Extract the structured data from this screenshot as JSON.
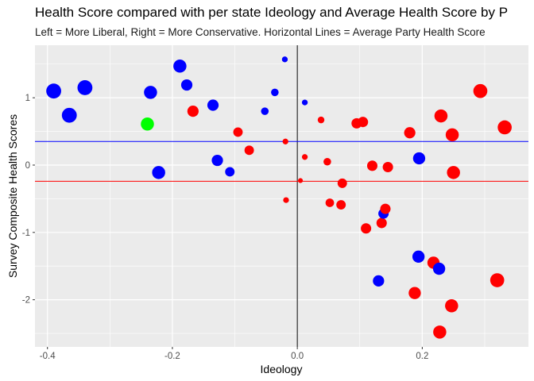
{
  "chart_data": {
    "type": "scatter",
    "title": "Health Score compared with per state Ideology and Average Health Score by P",
    "subtitle": "Left = More Liberal, Right = More Conservative. Horizontal Lines = Average Party Health Score",
    "xlabel": "Ideology",
    "ylabel": "Survey Composite Health Scores",
    "xlim": [
      -0.42,
      0.37
    ],
    "ylim": [
      -2.7,
      1.78
    ],
    "x_ticks": [
      -0.4,
      -0.2,
      0.0,
      0.2
    ],
    "x_tick_labels": [
      "-0.4",
      "-0.2",
      "0.0",
      "0.2"
    ],
    "y_ticks": [
      -2,
      -1,
      0,
      1
    ],
    "y_tick_labels": [
      "-2",
      "-1",
      "0",
      "1"
    ],
    "grid": true,
    "colors": {
      "blue": "#0000ff",
      "red": "#ff0000",
      "green": "#00ff00",
      "panel": "#ebebeb",
      "grid": "#ffffff",
      "vline": "#000000"
    },
    "hlines": [
      {
        "y": 0.35,
        "color": "#0000ff"
      },
      {
        "y": -0.24,
        "color": "#ff0000"
      }
    ],
    "vline": {
      "x": 0.0
    },
    "points": [
      {
        "x": -0.39,
        "y": 1.1,
        "color": "blue",
        "size": 6
      },
      {
        "x": -0.365,
        "y": 0.74,
        "color": "blue",
        "size": 6
      },
      {
        "x": -0.34,
        "y": 1.15,
        "color": "blue",
        "size": 6
      },
      {
        "x": -0.235,
        "y": 1.08,
        "color": "blue",
        "size": 5
      },
      {
        "x": -0.24,
        "y": 0.61,
        "color": "green",
        "size": 5
      },
      {
        "x": -0.222,
        "y": -0.11,
        "color": "blue",
        "size": 5
      },
      {
        "x": -0.188,
        "y": 1.47,
        "color": "blue",
        "size": 5
      },
      {
        "x": -0.177,
        "y": 1.19,
        "color": "blue",
        "size": 4
      },
      {
        "x": -0.167,
        "y": 0.8,
        "color": "red",
        "size": 4
      },
      {
        "x": -0.135,
        "y": 0.89,
        "color": "blue",
        "size": 4
      },
      {
        "x": -0.128,
        "y": 0.07,
        "color": "blue",
        "size": 4
      },
      {
        "x": -0.108,
        "y": -0.1,
        "color": "blue",
        "size": 3
      },
      {
        "x": -0.095,
        "y": 0.49,
        "color": "red",
        "size": 3
      },
      {
        "x": -0.077,
        "y": 0.22,
        "color": "red",
        "size": 3
      },
      {
        "x": -0.052,
        "y": 0.8,
        "color": "blue",
        "size": 2
      },
      {
        "x": -0.036,
        "y": 1.08,
        "color": "blue",
        "size": 2
      },
      {
        "x": -0.02,
        "y": 1.57,
        "color": "blue",
        "size": 1
      },
      {
        "x": -0.019,
        "y": 0.35,
        "color": "red",
        "size": 1
      },
      {
        "x": -0.018,
        "y": -0.52,
        "color": "red",
        "size": 1
      },
      {
        "x": 0.005,
        "y": -0.23,
        "color": "red",
        "size": 0.5
      },
      {
        "x": 0.012,
        "y": 0.93,
        "color": "blue",
        "size": 1
      },
      {
        "x": 0.012,
        "y": 0.12,
        "color": "red",
        "size": 1
      },
      {
        "x": 0.038,
        "y": 0.67,
        "color": "red",
        "size": 1.5
      },
      {
        "x": 0.048,
        "y": 0.05,
        "color": "red",
        "size": 2
      },
      {
        "x": 0.052,
        "y": -0.56,
        "color": "red",
        "size": 2.5
      },
      {
        "x": 0.07,
        "y": -0.59,
        "color": "red",
        "size": 3
      },
      {
        "x": 0.072,
        "y": -0.27,
        "color": "red",
        "size": 3
      },
      {
        "x": 0.095,
        "y": 0.62,
        "color": "red",
        "size": 3.5
      },
      {
        "x": 0.105,
        "y": 0.64,
        "color": "red",
        "size": 3.5
      },
      {
        "x": 0.11,
        "y": -0.94,
        "color": "red",
        "size": 3.5
      },
      {
        "x": 0.12,
        "y": -0.01,
        "color": "red",
        "size": 3.5
      },
      {
        "x": 0.135,
        "y": -0.86,
        "color": "red",
        "size": 3.5
      },
      {
        "x": 0.138,
        "y": -0.72,
        "color": "blue",
        "size": 3.5
      },
      {
        "x": 0.141,
        "y": -0.65,
        "color": "red",
        "size": 3.5
      },
      {
        "x": 0.145,
        "y": -0.03,
        "color": "red",
        "size": 3.5
      },
      {
        "x": 0.13,
        "y": -1.72,
        "color": "blue",
        "size": 4
      },
      {
        "x": 0.18,
        "y": 0.48,
        "color": "red",
        "size": 4
      },
      {
        "x": 0.188,
        "y": -1.9,
        "color": "red",
        "size": 4.5
      },
      {
        "x": 0.194,
        "y": -1.36,
        "color": "blue",
        "size": 4.5
      },
      {
        "x": 0.195,
        "y": 0.1,
        "color": "blue",
        "size": 4.5
      },
      {
        "x": 0.218,
        "y": -1.45,
        "color": "red",
        "size": 4.5
      },
      {
        "x": 0.227,
        "y": -1.54,
        "color": "blue",
        "size": 4.5
      },
      {
        "x": 0.23,
        "y": 0.73,
        "color": "red",
        "size": 5
      },
      {
        "x": 0.228,
        "y": -2.48,
        "color": "red",
        "size": 5
      },
      {
        "x": 0.247,
        "y": -2.09,
        "color": "red",
        "size": 5
      },
      {
        "x": 0.248,
        "y": 0.45,
        "color": "red",
        "size": 5
      },
      {
        "x": 0.25,
        "y": -0.11,
        "color": "red",
        "size": 5
      },
      {
        "x": 0.293,
        "y": 1.1,
        "color": "red",
        "size": 5.5
      },
      {
        "x": 0.32,
        "y": -1.71,
        "color": "red",
        "size": 5.5
      },
      {
        "x": 0.332,
        "y": 0.56,
        "color": "red",
        "size": 5.5
      }
    ]
  }
}
